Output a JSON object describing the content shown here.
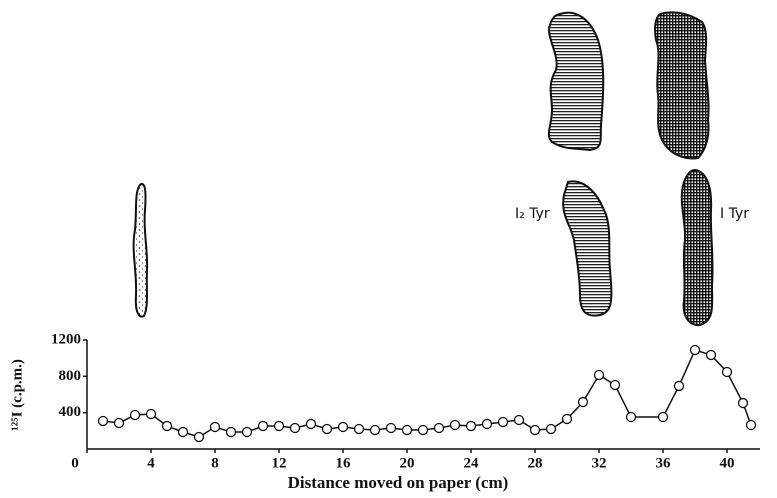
{
  "chart_data": {
    "type": "line",
    "x_label": "Distance moved on paper (cm)",
    "y_label": "¹²⁵I (c.p.m.)",
    "annotations": [
      "I₂ Tyr",
      "I Tyr"
    ],
    "x": [
      1,
      2,
      3,
      4,
      5,
      6,
      7,
      8,
      9,
      10,
      11,
      12,
      13,
      14,
      15,
      16,
      17,
      18,
      19,
      20,
      21,
      22,
      23,
      24,
      25,
      26,
      27,
      28,
      29,
      30,
      31,
      32,
      33,
      34,
      36,
      37,
      38,
      39,
      40,
      41,
      41.5
    ],
    "values": [
      308,
      286,
      374,
      385,
      253,
      187,
      132,
      242,
      187,
      187,
      253,
      253,
      231,
      275,
      220,
      242,
      220,
      209,
      231,
      209,
      209,
      231,
      264,
      253,
      275,
      297,
      319,
      209,
      220,
      330,
      517,
      815,
      705,
      352,
      352,
      694,
      1090,
      1035,
      848,
      506,
      264
    ],
    "color": "#111111",
    "xlim": [
      0,
      42
    ],
    "xticks": [
      0,
      4,
      8,
      12,
      16,
      20,
      24,
      28,
      32,
      36,
      40
    ],
    "ylim": [
      0,
      1200
    ],
    "yticks": [
      400,
      800,
      1200
    ]
  }
}
